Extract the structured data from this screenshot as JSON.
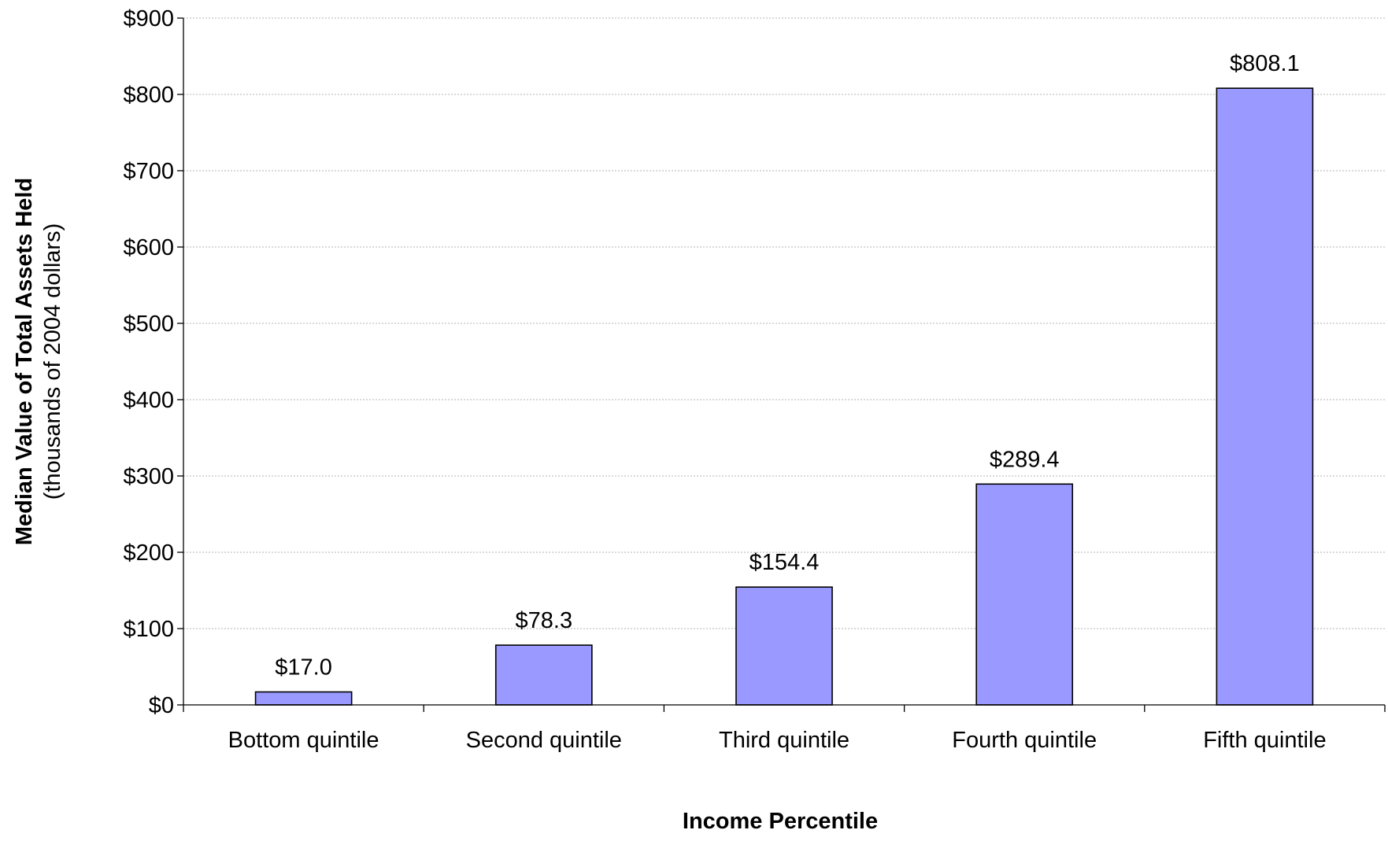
{
  "chart_data": {
    "type": "bar",
    "categories": [
      "Bottom quintile",
      "Second quintile",
      "Third quintile",
      "Fourth quintile",
      "Fifth quintile"
    ],
    "values": [
      17.0,
      78.3,
      154.4,
      289.4,
      808.1
    ],
    "value_labels": [
      "$17.0",
      "$78.3",
      "$154.4",
      "$289.4",
      "$808.1"
    ],
    "xlabel": "Income Percentile",
    "ylabel": "Median Value of Total Assets Held",
    "ylabel_sub": "(thousands of 2004 dollars)",
    "ylim": [
      0,
      900
    ],
    "yticks": [
      0,
      100,
      200,
      300,
      400,
      500,
      600,
      700,
      800,
      900
    ],
    "ytick_labels": [
      "$0",
      "$100",
      "$200",
      "$300",
      "$400",
      "$500",
      "$600",
      "$700",
      "$800",
      "$900"
    ],
    "grid": true,
    "bar_color": "#9999ff"
  }
}
